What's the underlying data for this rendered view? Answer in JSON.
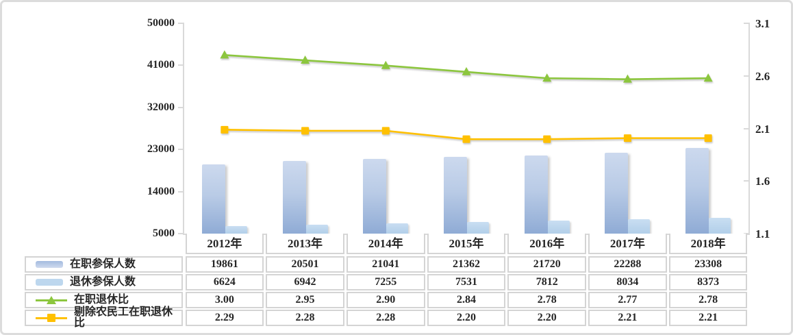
{
  "chart_data": {
    "type": "bar",
    "subtype": "combo-bar-line-with-data-table",
    "categories": [
      "2012年",
      "2013年",
      "2014年",
      "2015年",
      "2016年",
      "2017年",
      "2018年"
    ],
    "series": [
      {
        "name": "在职参保人数",
        "kind": "bar",
        "axis": "left",
        "swatch": "bar-gradient-blue",
        "color": "#9db8dd",
        "values": [
          19861,
          20501,
          21041,
          21362,
          21720,
          22288,
          23308
        ]
      },
      {
        "name": "退休参保人数",
        "kind": "bar",
        "axis": "left",
        "swatch": "bar-light-blue",
        "color": "#bdd7ee",
        "values": [
          6624,
          6942,
          7255,
          7531,
          7812,
          8034,
          8373
        ]
      },
      {
        "name": "在职退休比",
        "kind": "line",
        "axis": "right",
        "marker": "triangle",
        "color": "#8cc63e",
        "values": [
          "3.00",
          "2.95",
          "2.90",
          "2.84",
          "2.78",
          "2.77",
          "2.78"
        ]
      },
      {
        "name": "剔除农民工在职退休比",
        "kind": "line",
        "axis": "right",
        "marker": "square",
        "color": "#ffc000",
        "values": [
          "2.29",
          "2.28",
          "2.28",
          "2.20",
          "2.20",
          "2.21",
          "2.21"
        ]
      }
    ],
    "left_axis": {
      "min": 5000,
      "max": 50000,
      "ticks": [
        50000,
        41000,
        32000,
        23000,
        14000,
        5000
      ]
    },
    "right_axis": {
      "min": 1.1,
      "max": 3.1,
      "ticks": [
        "3.1",
        "2.6",
        "2.1",
        "1.6",
        "1.1"
      ]
    },
    "grid": "off",
    "legend_position": "table-left-column",
    "title": "",
    "xlabel": "",
    "ylabel": ""
  }
}
